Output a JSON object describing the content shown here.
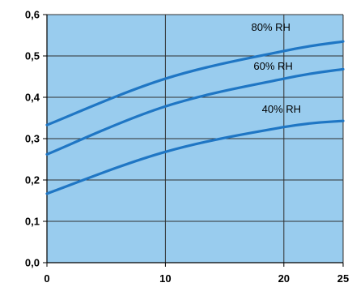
{
  "chart_data": {
    "type": "line",
    "title": "",
    "xlabel": "",
    "ylabel": "",
    "x": [
      0,
      10,
      20,
      25
    ],
    "xlim": [
      0,
      25
    ],
    "ylim": [
      0,
      0.6
    ],
    "x_ticks": [
      "0",
      "10",
      "20",
      "25"
    ],
    "y_ticks": [
      "0,0",
      "0,1",
      "0,2",
      "0,3",
      "0,4",
      "0,5",
      "0,6"
    ],
    "grid": true,
    "legend": "none",
    "series": [
      {
        "name": "80% RH",
        "values": [
          0.333,
          0.445,
          0.512,
          0.535
        ]
      },
      {
        "name": "60% RH",
        "values": [
          0.262,
          0.378,
          0.445,
          0.468
        ]
      },
      {
        "name": "40% RH",
        "values": [
          0.167,
          0.268,
          0.328,
          0.343
        ]
      }
    ],
    "colors": {
      "plot_background": "#99ccee",
      "line": "#1f76c4",
      "grid": "#303030"
    }
  }
}
